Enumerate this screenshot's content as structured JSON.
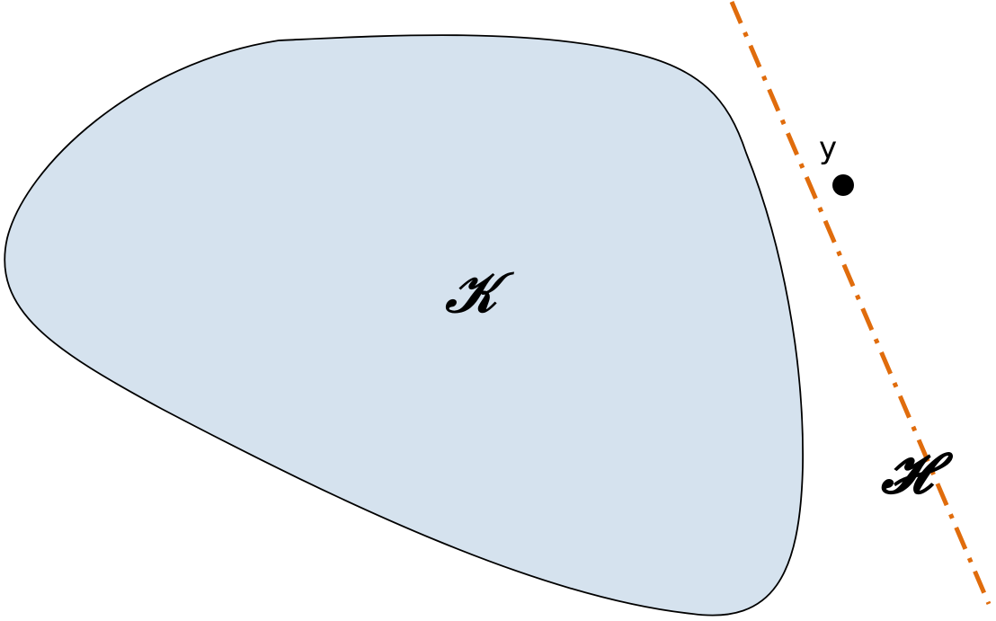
{
  "diagram": {
    "convex_set": {
      "label": "𝒦",
      "fill_color": "#d5e2ee",
      "stroke_color": "#000000"
    },
    "hyperplane": {
      "label": "𝓗",
      "stroke_color": "#e06c0c",
      "line_style": "dash-dot"
    },
    "point": {
      "label": "y",
      "color": "#000000"
    }
  }
}
